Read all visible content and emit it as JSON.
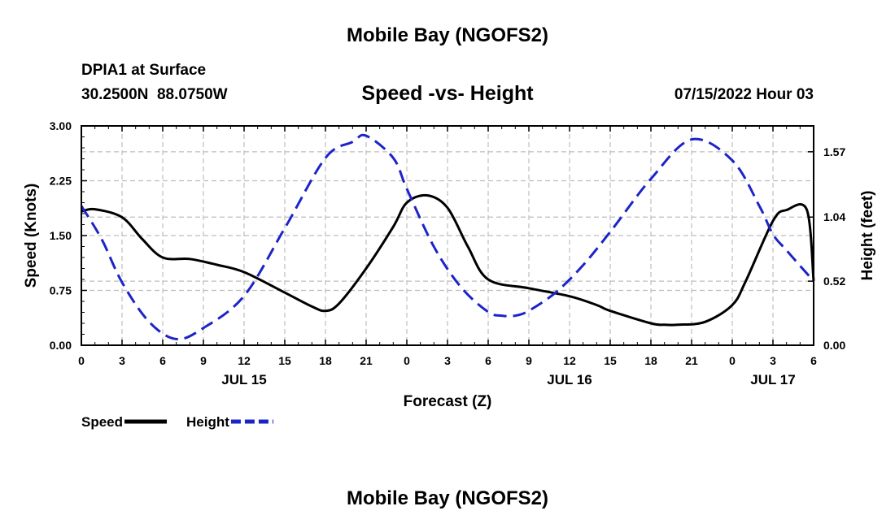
{
  "header": {
    "title": "Mobile Bay (NGOFS2)",
    "station": "DPIA1 at Surface",
    "coords": "30.2500N  88.0750W",
    "subtitle": "Speed -vs- Height",
    "forecast_time": "07/15/2022 Hour 03"
  },
  "footer": {
    "title": "Mobile Bay (NGOFS2)"
  },
  "chart_data": {
    "type": "line",
    "title": "Speed -vs- Height",
    "xlabel": "Forecast (Z)",
    "ylabel": "Speed (Knots)",
    "y2label": "Height (feet)",
    "x_ticks": [
      "0",
      "3",
      "6",
      "9",
      "12",
      "15",
      "18",
      "21",
      "0",
      "3",
      "6",
      "9",
      "12",
      "15",
      "18",
      "21",
      "0",
      "3",
      "6"
    ],
    "x_dates": [
      {
        "label": "JUL 15",
        "at_hour": 12
      },
      {
        "label": "JUL 16",
        "at_hour": 36
      },
      {
        "label": "JUL 17",
        "at_hour": 51
      }
    ],
    "xlim": [
      0,
      54
    ],
    "ylim": [
      0,
      3.0
    ],
    "y_ticks": [
      "0.00",
      "0.75",
      "1.50",
      "2.25",
      "3.00"
    ],
    "y2lim": [
      0,
      1.78
    ],
    "y2_ticks": [
      "0.00",
      "0.52",
      "1.04",
      "1.57"
    ],
    "grid": true,
    "legend_position": "bottom-left",
    "series": [
      {
        "name": "Speed",
        "axis": "left",
        "color": "#000000",
        "dash": "solid",
        "x": [
          0,
          1,
          3,
          4.5,
          6,
          8,
          10,
          12,
          15,
          17,
          18,
          19,
          21,
          23,
          24,
          25.5,
          27,
          28.5,
          30,
          33,
          36,
          38,
          39,
          42,
          43,
          44,
          46,
          48,
          49,
          51,
          52,
          53.5,
          54
        ],
        "values": [
          1.83,
          1.86,
          1.75,
          1.45,
          1.2,
          1.18,
          1.1,
          1.0,
          0.72,
          0.53,
          0.47,
          0.57,
          1.05,
          1.62,
          1.95,
          2.05,
          1.88,
          1.35,
          0.9,
          0.78,
          0.67,
          0.55,
          0.47,
          0.3,
          0.28,
          0.28,
          0.32,
          0.55,
          0.88,
          1.7,
          1.85,
          1.85,
          0.88
        ]
      },
      {
        "name": "Height",
        "axis": "right",
        "color": "#1c24c8",
        "dash": "dashed",
        "x": [
          0,
          1.5,
          3,
          5,
          7,
          9,
          12,
          15,
          18,
          20,
          21,
          23,
          24,
          26,
          28,
          30,
          31,
          32,
          33,
          35,
          37,
          39,
          42,
          45,
          48,
          50,
          51,
          52,
          54
        ],
        "values": [
          1.13,
          0.86,
          0.51,
          0.19,
          0.05,
          0.14,
          0.4,
          0.95,
          1.52,
          1.65,
          1.7,
          1.52,
          1.27,
          0.8,
          0.47,
          0.27,
          0.24,
          0.24,
          0.28,
          0.43,
          0.65,
          0.92,
          1.35,
          1.67,
          1.5,
          1.13,
          0.9,
          0.77,
          0.52
        ]
      }
    ]
  }
}
